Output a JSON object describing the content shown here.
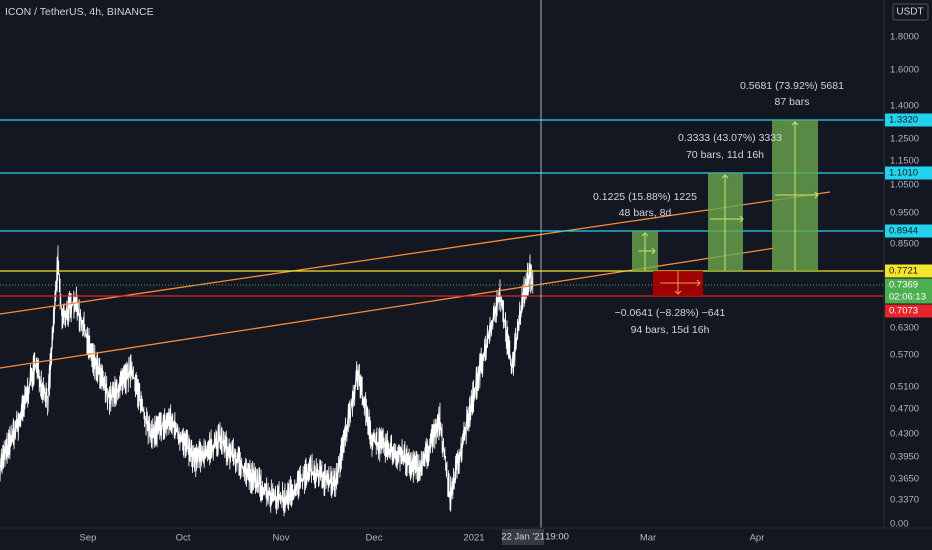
{
  "header": {
    "title": "ICON / TetherUS, 4h, BINANCE",
    "currency": "USDT"
  },
  "price_axis": [
    "1.8000",
    "1.6000",
    "1.4000",
    "1.2500",
    "1.1500",
    "1.0500",
    "0.9500",
    "0.8500",
    "0.6300",
    "0.5700",
    "0.5100",
    "0.4700",
    "0.4300",
    "0.3950",
    "0.3650",
    "0.3370",
    "0.00"
  ],
  "time_axis": [
    "Sep",
    "Oct",
    "Nov",
    "Dec",
    "2021",
    "Mar",
    "Apr"
  ],
  "crosshair": {
    "date": "22 Jan '21",
    "time": "19:00"
  },
  "levels": [
    "1.3320",
    "1.1010",
    "0.8944",
    "0.7721",
    "0.7369",
    "02:06:13",
    "0.7073"
  ],
  "measures": [
    {
      "line1": "0.1225 (15.88%) 1225",
      "line2": "48 bars, 8d"
    },
    {
      "line1": "0.3333 (43.07%) 3333",
      "line2": "70 bars, 11d 16h"
    },
    {
      "line1": "0.5681 (73.92%) 5681",
      "line2": "87 bars"
    },
    {
      "line1": "−0.0641 (−8.28%) −641",
      "line2": "94 bars, 15d 16h"
    }
  ]
}
